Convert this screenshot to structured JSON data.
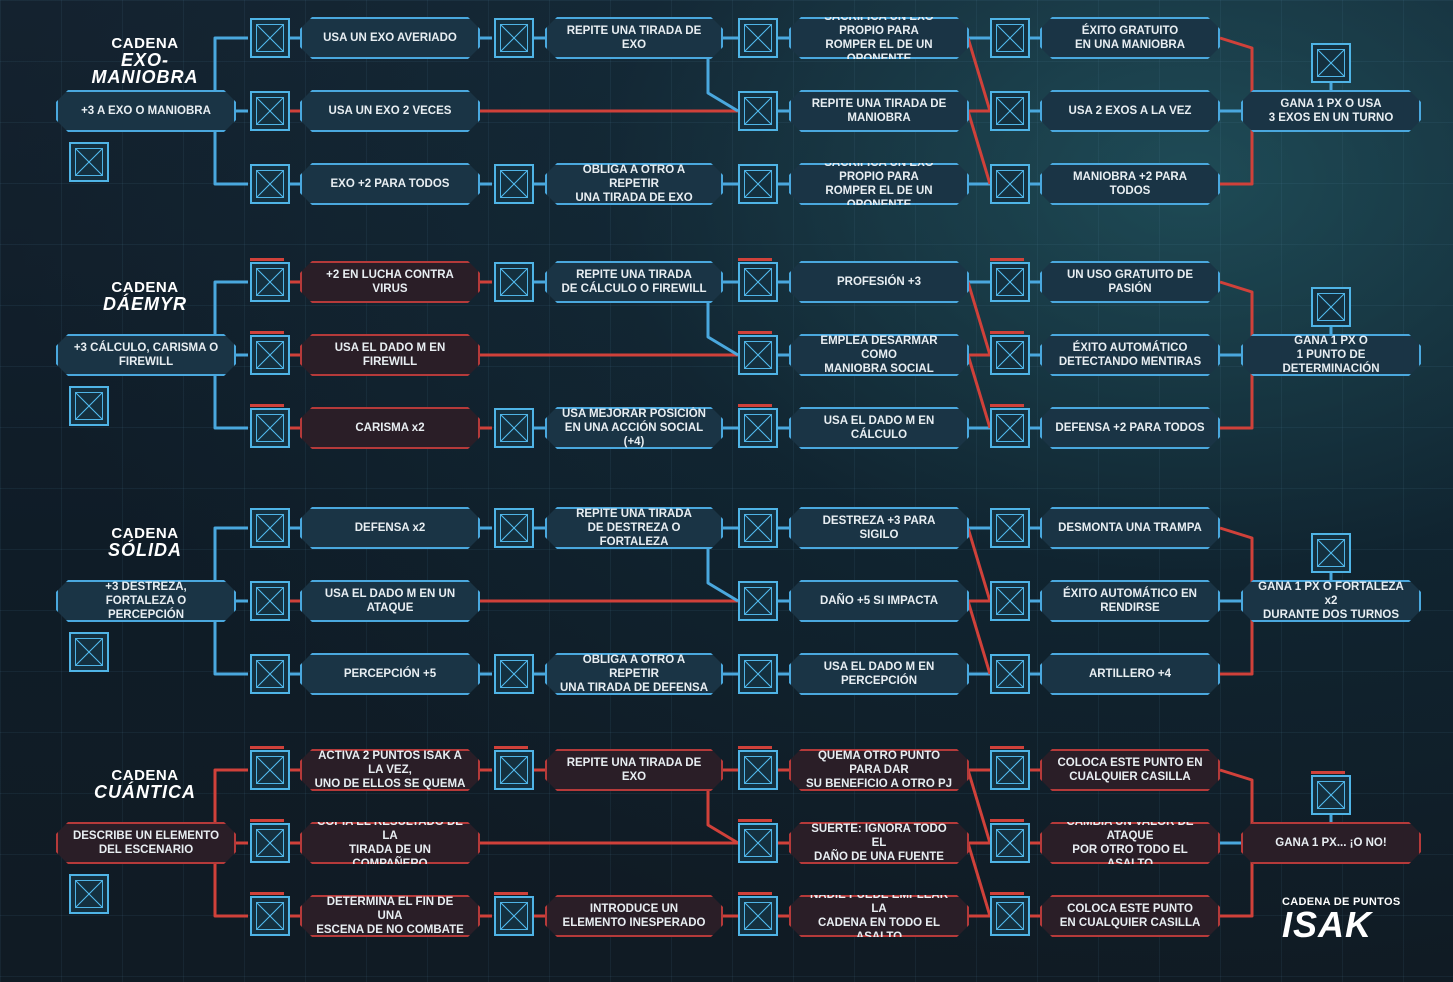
{
  "colors": {
    "blue": "#4aa8de",
    "red": "#d0413a",
    "background": "#0f1c27"
  },
  "icon": "checkbox-square-icon",
  "logo": {
    "line1": "CADENA DE PUNTOS",
    "line2": "ISAK"
  },
  "chains": [
    {
      "title1": "CADENA",
      "title2": "EXO-\nMANIOBRA",
      "start": "+3 A EXO O MANIOBRA",
      "col1": [
        "USA UN EXO AVERIADO",
        "USA UN EXO 2 VECES",
        "EXO +2 PARA TODOS"
      ],
      "col2": [
        "REPITE UNA TIRADA DE EXO",
        "",
        "OBLIGA A OTRO A REPETIR\nUNA TIRADA DE EXO"
      ],
      "col3": [
        "SACRIFICA UN EXO PROPIO PARA\nROMPER EL DE UN OPONENTE",
        "REPITE UNA TIRADA DE MANIOBRA",
        "SACRIFICA UN EXO PROPIO PARA\nROMPER EL DE UN OPONENTE"
      ],
      "col4": [
        "ÉXITO GRATUITO\nEN UNA MANIOBRA",
        "USA 2 EXOS A LA VEZ",
        "MANIOBRA +2 PARA TODOS"
      ],
      "final": "GANA 1 PX O USA\n3 EXOS EN UN TURNO"
    },
    {
      "title1": "CADENA",
      "title2": "DÁEMYR",
      "start": "+3 CÁLCULO, CARISMA O FIREWILL",
      "col1": [
        "+2 EN LUCHA CONTRA VIRUS",
        "USA EL DADO M EN FIREWILL",
        "CARISMA x2"
      ],
      "col2": [
        "REPITE UNA TIRADA\nDE CÁLCULO O FIREWILL",
        "",
        "USA MEJORAR POSICIÓN\nEN UNA ACCIÓN SOCIAL (+4)"
      ],
      "col3": [
        "PROFESIÓN +3",
        "EMPLEA DESARMAR COMO\nMANIOBRA SOCIAL",
        "USA EL DADO M EN CÁLCULO"
      ],
      "col4": [
        "UN USO GRATUITO DE PASIÓN",
        "ÉXITO AUTOMÁTICO\nDETECTANDO MENTIRAS",
        "DEFENSA +2 PARA TODOS"
      ],
      "final": "GANA 1 PX O\n1 PUNTO DE DETERMINACIÓN"
    },
    {
      "title1": "CADENA",
      "title2": "SÓLIDA",
      "start": "+3 DESTREZA,\nFORTALEZA O PERCEPCIÓN",
      "col1": [
        "DEFENSA x2",
        "USA EL DADO M EN UN ATAQUE",
        "PERCEPCIÓN +5"
      ],
      "col2": [
        "REPITE UNA TIRADA\nDE DESTREZA O FORTALEZA",
        "",
        "OBLIGA A OTRO A REPETIR\nUNA TIRADA DE DEFENSA"
      ],
      "col3": [
        "DESTREZA +3 PARA SIGILO",
        "DAÑO +5 SI IMPACTA",
        "USA EL DADO M EN PERCEPCIÓN"
      ],
      "col4": [
        "DESMONTA UNA TRAMPA",
        "ÉXITO AUTOMÁTICO EN RENDIRSE",
        "ARTILLERO +4"
      ],
      "final": "GANA 1 PX O FORTALEZA x2\nDURANTE DOS TURNOS"
    },
    {
      "title1": "CADENA",
      "title2": "CUÁNTICA",
      "start": "DESCRIBE UN ELEMENTO\nDEL ESCENARIO",
      "col1": [
        "ACTIVA 2 PUNTOS ISAK A LA VEZ,\nUNO DE ELLOS SE QUEMA",
        "COPIA EL RESULTADO DE LA\nTIRADA DE UN COMPAÑERO",
        "DETERMINA EL FIN DE UNA\nESCENA DE NO COMBATE"
      ],
      "col2": [
        "REPITE UNA TIRADA DE EXO",
        "",
        "INTRODUCE UN\nELEMENTO INESPERADO"
      ],
      "col3": [
        "QUEMA OTRO PUNTO PARA DAR\nSU BENEFICIO A OTRO PJ",
        "SUERTE: IGNORA TODO EL\nDAÑO DE UNA FUENTE",
        "NADIE PUEDE EMPLEAR LA\nCADENA EN TODO EL ASALTO"
      ],
      "col4": [
        "COLOCA ESTE PUNTO EN\nCUALQUIER CASILLA",
        "CAMBIA UN VALOR DE ATAQUE\nPOR OTRO TODO EL ASALTO",
        "COLOCA ESTE PUNTO\nEN CUALQUIER CASILLA"
      ],
      "final": "GANA 1 PX... ¡O NO!"
    }
  ]
}
